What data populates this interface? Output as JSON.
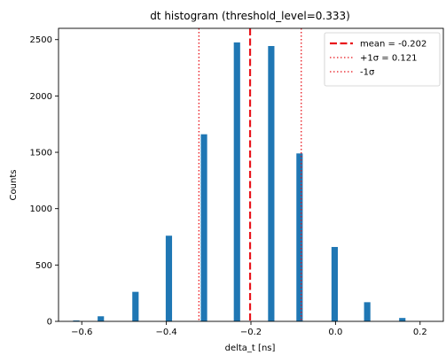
{
  "chart_data": {
    "type": "bar",
    "title": "dt histogram (threshold_level=0.333)",
    "xlabel": "delta_t [ns]",
    "ylabel": "Counts",
    "xlim": [
      -0.655,
      0.255
    ],
    "ylim": [
      0,
      2600
    ],
    "xticks": [
      -0.6,
      -0.4,
      -0.2,
      0.0,
      0.2
    ],
    "xtick_labels": [
      "−0.6",
      "−0.4",
      "−0.2",
      "0.0",
      "0.2"
    ],
    "yticks": [
      0,
      500,
      1000,
      1500,
      2000,
      2500
    ],
    "ytick_labels": [
      "0",
      "500",
      "1000",
      "1500",
      "2000",
      "2500"
    ],
    "bar_color": "#1f77b4",
    "bar_width": 0.015,
    "bars": [
      {
        "x": -0.613,
        "value": 8
      },
      {
        "x": -0.555,
        "value": 45
      },
      {
        "x": -0.473,
        "value": 262
      },
      {
        "x": -0.394,
        "value": 760
      },
      {
        "x": -0.311,
        "value": 1660
      },
      {
        "x": -0.233,
        "value": 2475
      },
      {
        "x": -0.152,
        "value": 2443
      },
      {
        "x": -0.085,
        "value": 1490
      },
      {
        "x": -0.002,
        "value": 660
      },
      {
        "x": 0.075,
        "value": 170
      },
      {
        "x": 0.158,
        "value": 30
      }
    ],
    "lines": [
      {
        "x": -0.202,
        "label": "mean = -0.202",
        "color": "#e8141b",
        "style": "dashed"
      },
      {
        "x": -0.081,
        "label": "+1σ = 0.121",
        "color": "#e8141b",
        "style": "dotted"
      },
      {
        "x": -0.323,
        "label": "-1σ",
        "color": "#e8141b",
        "style": "dotted"
      }
    ],
    "legend_position": "top-right",
    "grid": false
  }
}
